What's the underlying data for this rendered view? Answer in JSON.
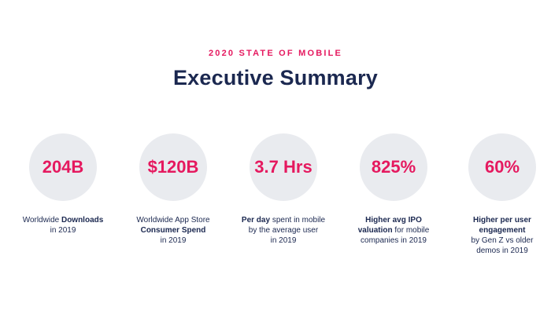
{
  "header": {
    "eyebrow": "2020 STATE OF MOBILE",
    "title": "Executive Summary"
  },
  "stats": [
    {
      "value": "204B",
      "caption": [
        {
          "pre": "Worldwide ",
          "bold": "Downloads",
          "post": ""
        },
        {
          "pre": "in 2019",
          "bold": "",
          "post": ""
        }
      ]
    },
    {
      "value": "$120B",
      "caption": [
        {
          "pre": "Worldwide App Store",
          "bold": "",
          "post": ""
        },
        {
          "pre": "",
          "bold": "Consumer Spend",
          "post": ""
        },
        {
          "pre": "in 2019",
          "bold": "",
          "post": ""
        }
      ]
    },
    {
      "value": "3.7 Hrs",
      "caption": [
        {
          "pre": "",
          "bold": "Per day",
          "post": " spent in mobile"
        },
        {
          "pre": "by the average user",
          "bold": "",
          "post": ""
        },
        {
          "pre": "in 2019",
          "bold": "",
          "post": ""
        }
      ]
    },
    {
      "value": "825%",
      "caption": [
        {
          "pre": "",
          "bold": "Higher avg IPO",
          "post": ""
        },
        {
          "pre": "",
          "bold": "valuation",
          "post": " for mobile"
        },
        {
          "pre": "companies in 2019",
          "bold": "",
          "post": ""
        }
      ]
    },
    {
      "value": "60%",
      "caption": [
        {
          "pre": "",
          "bold": "Higher per user",
          "post": ""
        },
        {
          "pre": "",
          "bold": "engagement",
          "post": ""
        },
        {
          "pre": "by Gen Z vs older",
          "bold": "",
          "post": ""
        },
        {
          "pre": "demos in 2019",
          "bold": "",
          "post": ""
        }
      ]
    }
  ],
  "colors": {
    "accent": "#e5195f",
    "navy": "#1b2850",
    "circle": "#e9ebef"
  }
}
